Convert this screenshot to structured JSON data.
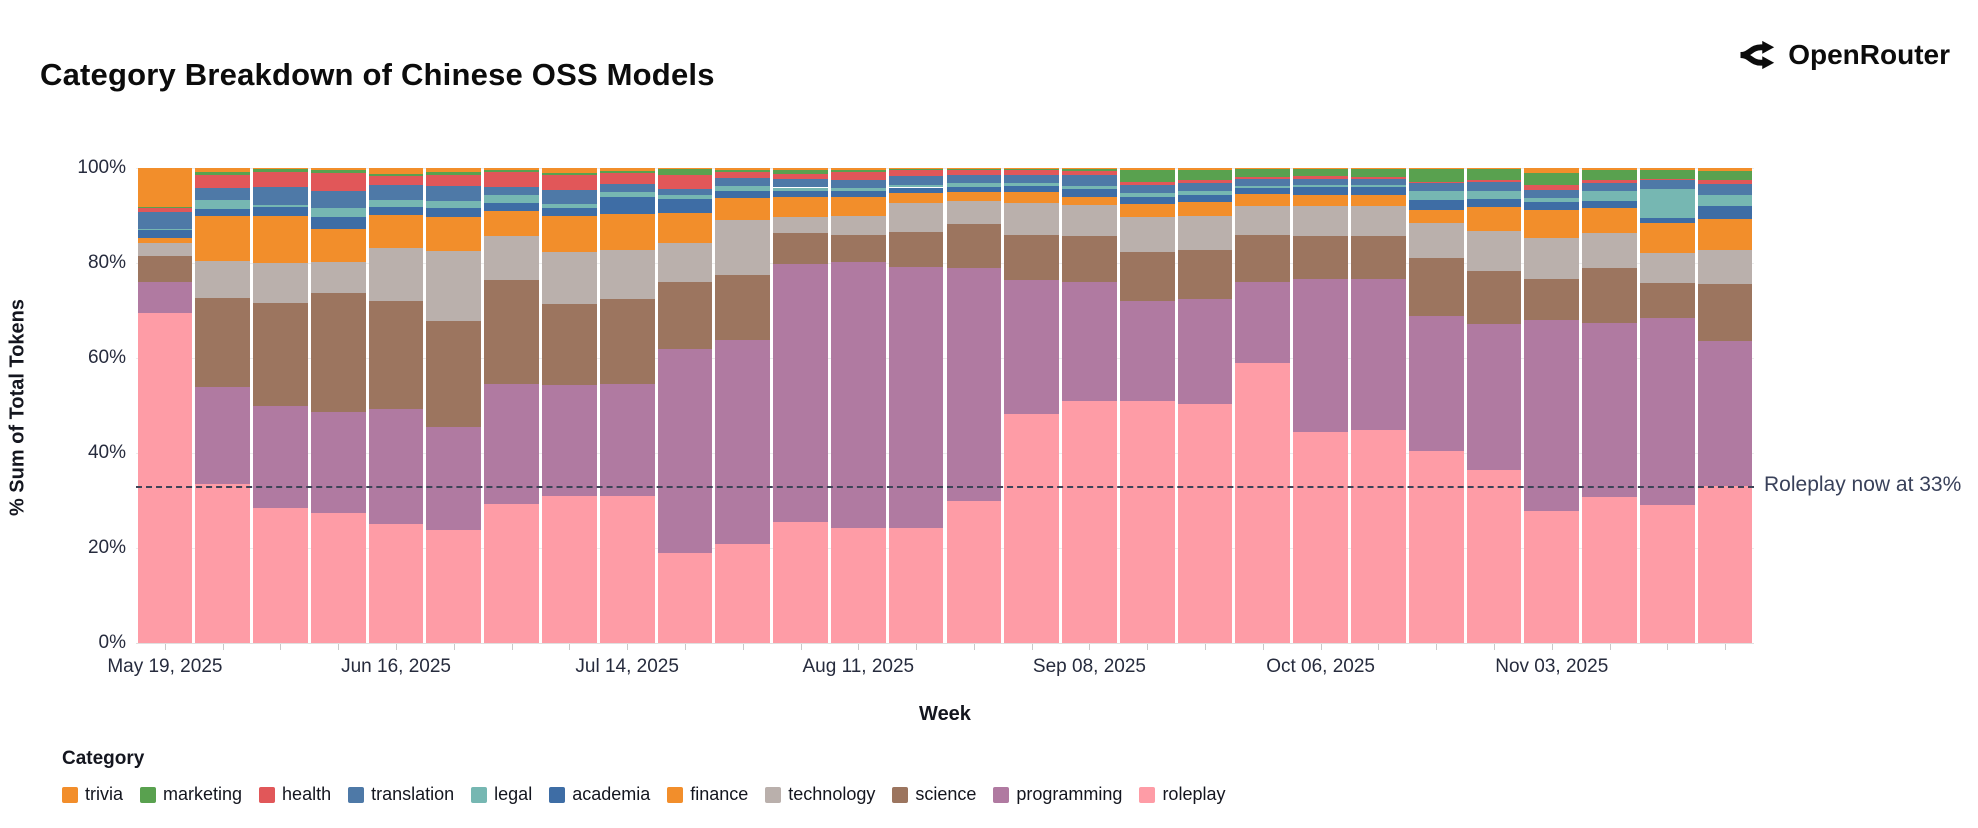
{
  "header": {
    "title": "Category Breakdown of Chinese OSS Models",
    "brand": "OpenRouter"
  },
  "chart_data": {
    "type": "bar",
    "stacked": true,
    "title": "Category Breakdown of Chinese OSS Models",
    "xlabel": "Week",
    "ylabel": "% Sum of Total Tokens",
    "ylim": [
      0,
      100
    ],
    "yticks": [
      {
        "value": 0,
        "label": "0%"
      },
      {
        "value": 20,
        "label": "20%"
      },
      {
        "value": 40,
        "label": "40%"
      },
      {
        "value": 60,
        "label": "60%"
      },
      {
        "value": 80,
        "label": "80%"
      },
      {
        "value": 100,
        "label": "100%"
      }
    ],
    "grid": true,
    "legend_position": "bottom",
    "x": [
      "May 19",
      "May 26",
      "Jun 02",
      "Jun 09",
      "Jun 16",
      "Jun 23",
      "Jun 30",
      "Jul 07",
      "Jul 14",
      "Jul 21",
      "Jul 28",
      "Aug 04",
      "Aug 11",
      "Aug 18",
      "Aug 25",
      "Sep 01",
      "Sep 08",
      "Sep 15",
      "Sep 22",
      "Sep 29",
      "Oct 06",
      "Oct 13",
      "Oct 20",
      "Oct 27",
      "Nov 03",
      "Nov 10",
      "Nov 17",
      "Nov 24"
    ],
    "x_tick_labels": [
      {
        "index": 0,
        "label": "May 19, 2025"
      },
      {
        "index": 4,
        "label": "Jun 16, 2025"
      },
      {
        "index": 8,
        "label": "Jul 14, 2025"
      },
      {
        "index": 12,
        "label": "Aug 11, 2025"
      },
      {
        "index": 16,
        "label": "Sep 08, 2025"
      },
      {
        "index": 20,
        "label": "Oct 06, 2025"
      },
      {
        "index": 24,
        "label": "Nov 03, 2025"
      }
    ],
    "series": [
      {
        "name": "roleplay",
        "color": "#FE9CA6",
        "values": [
          69.5,
          33.5,
          28.5,
          27.3,
          25.0,
          23.8,
          29.3,
          31.0,
          31.0,
          19.0,
          20.8,
          25.4,
          24.3,
          24.2,
          30.0,
          48.3,
          51.0,
          50.9,
          50.4,
          59.0,
          44.4,
          44.8,
          40.5,
          36.5,
          27.8,
          30.8,
          29.0,
          33.0
        ]
      },
      {
        "name": "programming",
        "color": "#B07AA1",
        "values": [
          6.5,
          20.4,
          21.5,
          21.3,
          24.3,
          21.7,
          25.3,
          23.4,
          23.5,
          43.0,
          42.9,
          54.3,
          56.0,
          55.0,
          48.9,
          28.1,
          25.1,
          21.0,
          22.1,
          17.0,
          32.2,
          31.8,
          28.3,
          30.7,
          40.2,
          36.5,
          39.4,
          30.5
        ]
      },
      {
        "name": "science",
        "color": "#9C755F",
        "values": [
          5.5,
          18.7,
          21.6,
          25.0,
          22.6,
          22.3,
          21.8,
          16.9,
          18.0,
          14.0,
          13.7,
          6.6,
          5.6,
          7.4,
          9.3,
          9.5,
          9.5,
          10.5,
          10.3,
          10.0,
          9.0,
          9.0,
          12.2,
          11.1,
          8.6,
          11.6,
          7.4,
          12.0
        ]
      },
      {
        "name": "technology",
        "color": "#BAB0AC",
        "values": [
          2.8,
          7.8,
          8.4,
          6.7,
          11.3,
          14.7,
          9.2,
          11.0,
          10.3,
          8.2,
          11.6,
          3.3,
          3.9,
          6.0,
          4.9,
          6.7,
          6.6,
          7.2,
          7.2,
          6.0,
          6.4,
          6.3,
          7.4,
          8.5,
          8.6,
          7.4,
          6.4,
          7.2
        ]
      },
      {
        "name": "finance",
        "color": "#F28E2B",
        "values": [
          1.0,
          9.5,
          9.9,
          6.8,
          7.0,
          7.1,
          5.4,
          7.5,
          7.6,
          6.3,
          4.6,
          4.3,
          4.0,
          2.1,
          1.8,
          2.3,
          1.8,
          2.8,
          2.8,
          2.5,
          2.4,
          2.5,
          2.7,
          4.9,
          5.9,
          5.3,
          6.3,
          6.5
        ]
      },
      {
        "name": "academia",
        "color": "#3E6DA5",
        "values": [
          1.6,
          1.4,
          1.8,
          2.5,
          1.6,
          1.9,
          1.6,
          1.7,
          3.4,
          3.0,
          1.6,
          1.3,
          1.4,
          1.2,
          1.2,
          1.3,
          1.5,
          1.6,
          1.5,
          1.2,
          1.6,
          1.6,
          2.2,
          1.7,
          1.7,
          1.4,
          1.0,
          2.8
        ]
      },
      {
        "name": "legal",
        "color": "#76B7B2",
        "values": [
          0.3,
          1.9,
          0.6,
          2.0,
          1.4,
          1.6,
          1.7,
          0.9,
          1.2,
          0.9,
          1.0,
          0.7,
          0.6,
          0.6,
          0.8,
          0.7,
          0.8,
          0.8,
          0.9,
          0.6,
          0.5,
          0.5,
          1.8,
          1.8,
          0.9,
          2.1,
          6.0,
          2.3
        ]
      },
      {
        "name": "translation",
        "color": "#4E79A7",
        "values": [
          3.6,
          2.6,
          3.7,
          3.5,
          3.2,
          3.2,
          1.7,
          3.0,
          1.6,
          1.2,
          1.6,
          1.7,
          1.7,
          1.8,
          1.6,
          1.7,
          2.2,
          1.6,
          1.7,
          1.4,
          1.2,
          1.1,
          1.7,
          1.8,
          1.7,
          1.8,
          1.9,
          2.4
        ]
      },
      {
        "name": "health",
        "color": "#E15759",
        "values": [
          0.9,
          2.8,
          3.1,
          3.9,
          1.9,
          2.3,
          3.1,
          3.2,
          2.3,
          3.0,
          1.4,
          1.2,
          1.7,
          1.2,
          1.0,
          0.9,
          0.8,
          0.7,
          0.5,
          0.5,
          0.6,
          0.6,
          0.3,
          0.5,
          1.1,
          0.5,
          0.3,
          0.7
        ]
      },
      {
        "name": "marketing",
        "color": "#59A14F",
        "values": [
          0.1,
          0.5,
          0.6,
          0.5,
          0.5,
          0.5,
          0.4,
          0.4,
          0.5,
          1.2,
          0.4,
          0.7,
          0.4,
          0.2,
          0.2,
          0.2,
          0.4,
          2.4,
          2.1,
          1.5,
          1.5,
          1.6,
          2.6,
          2.2,
          2.5,
          2.2,
          1.9,
          1.9
        ]
      },
      {
        "name": "trivia",
        "color": "#F28E2B",
        "values": [
          8.2,
          0.9,
          0.3,
          0.5,
          1.2,
          0.9,
          0.5,
          1.0,
          0.6,
          0.2,
          0.4,
          0.5,
          0.4,
          0.3,
          0.3,
          0.3,
          0.3,
          0.5,
          0.5,
          0.3,
          0.2,
          0.2,
          0.3,
          0.3,
          1.0,
          0.4,
          0.4,
          0.7
        ]
      }
    ],
    "annotation": {
      "text": "Roleplay now at 33%",
      "y": 33
    },
    "legend": {
      "title": "Category",
      "items": [
        "trivia",
        "marketing",
        "health",
        "translation",
        "legal",
        "academia",
        "finance",
        "technology",
        "science",
        "programming",
        "roleplay"
      ]
    }
  }
}
